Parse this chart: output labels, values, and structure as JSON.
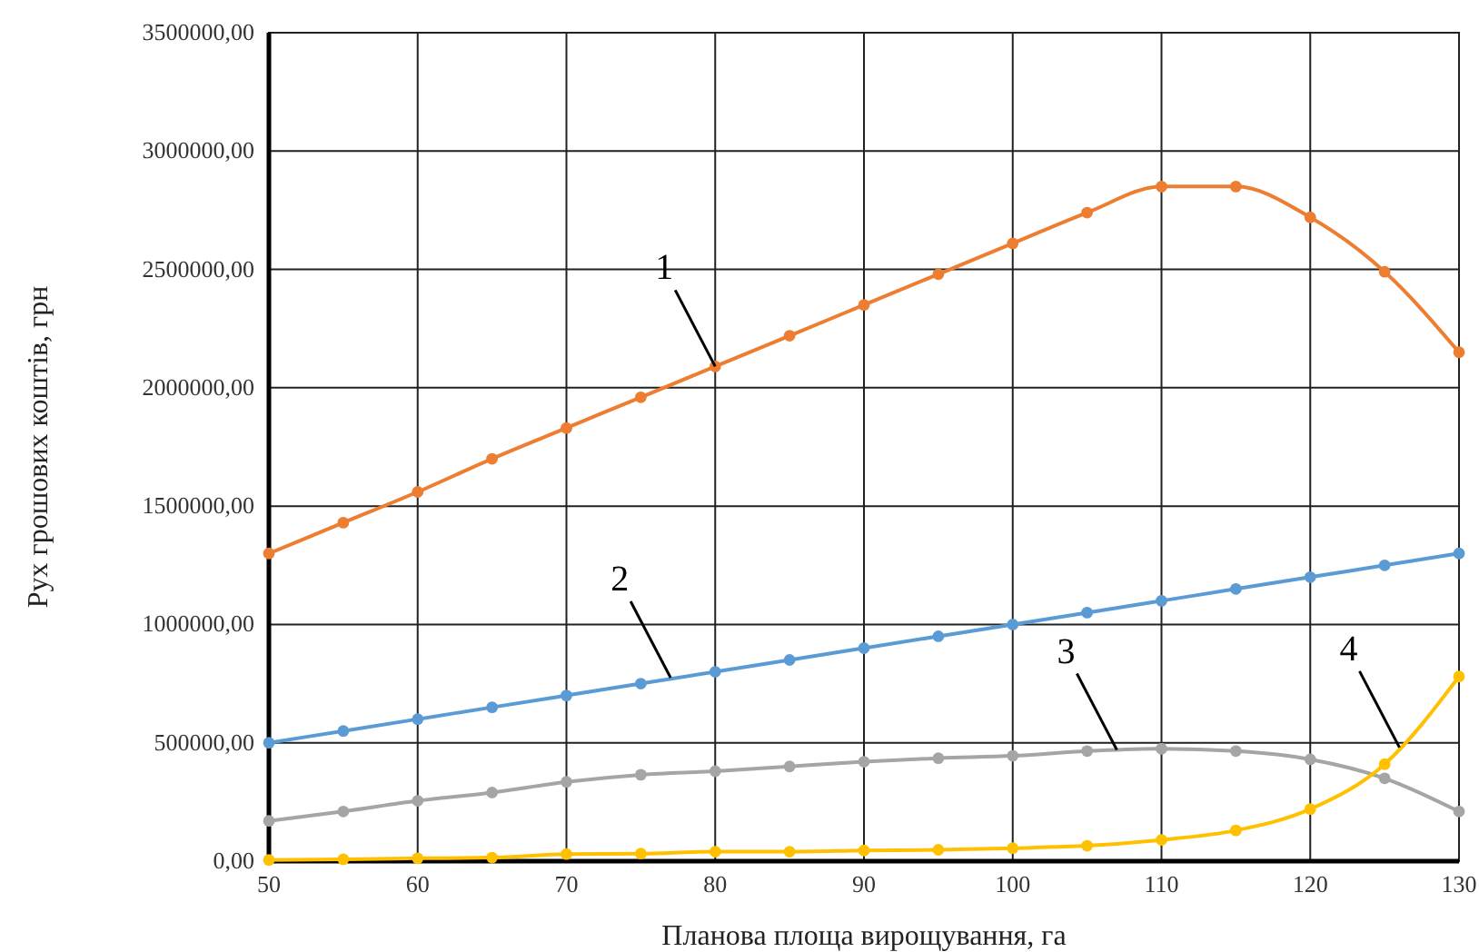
{
  "chart_data": {
    "type": "line",
    "xlabel": "Планова площа вирощування, га",
    "ylabel": "Рух грошових коштів, грн",
    "x": [
      50,
      55,
      60,
      65,
      70,
      75,
      80,
      85,
      90,
      95,
      100,
      105,
      110,
      115,
      120,
      125,
      130
    ],
    "series": [
      {
        "color": "#ed7d31",
        "values": [
          1300000,
          1430000,
          1560000,
          1700000,
          1830000,
          1960000,
          2090000,
          2220000,
          2350000,
          2480000,
          2610000,
          2740000,
          2850000,
          2850000,
          2720000,
          2490000,
          2150000
        ]
      },
      {
        "color": "#5b9bd5",
        "values": [
          500000,
          550000,
          600000,
          650000,
          700000,
          750000,
          800000,
          850000,
          900000,
          950000,
          1000000,
          1050000,
          1100000,
          1150000,
          1200000,
          1250000,
          1300000
        ]
      },
      {
        "color": "#a5a5a5",
        "values": [
          170000,
          210000,
          255000,
          290000,
          335000,
          365000,
          380000,
          400000,
          420000,
          435000,
          445000,
          465000,
          475000,
          465000,
          430000,
          350000,
          210000
        ]
      },
      {
        "color": "#ffc000",
        "values": [
          5000,
          8000,
          12000,
          15000,
          30000,
          32000,
          40000,
          40000,
          45000,
          48000,
          55000,
          65000,
          90000,
          130000,
          220000,
          410000,
          780000
        ]
      }
    ],
    "annotations": [
      {
        "text": "1",
        "x": 80,
        "y": 2090000
      },
      {
        "text": "2",
        "x": 77,
        "y": 775000
      },
      {
        "text": "3",
        "x": 107,
        "y": 470000
      },
      {
        "text": "4",
        "x": 126,
        "y": 480000
      }
    ],
    "xlim": [
      50,
      130
    ],
    "xticks": [
      50,
      60,
      70,
      80,
      90,
      100,
      110,
      120,
      130
    ],
    "ylim": [
      0,
      3500000
    ],
    "yticks": [
      {
        "value": 0,
        "label": "0,00"
      },
      {
        "value": 500000,
        "label": "500000,00"
      },
      {
        "value": 1000000,
        "label": "1000000,00"
      },
      {
        "value": 1500000,
        "label": "1500000,00"
      },
      {
        "value": 2000000,
        "label": "2000000,00"
      },
      {
        "value": 2500000,
        "label": "2500000,00"
      },
      {
        "value": 3000000,
        "label": "3000000,00"
      },
      {
        "value": 3500000,
        "label": "3500000,00"
      }
    ],
    "grid": true,
    "marker": "circle",
    "line_style": "solid"
  }
}
